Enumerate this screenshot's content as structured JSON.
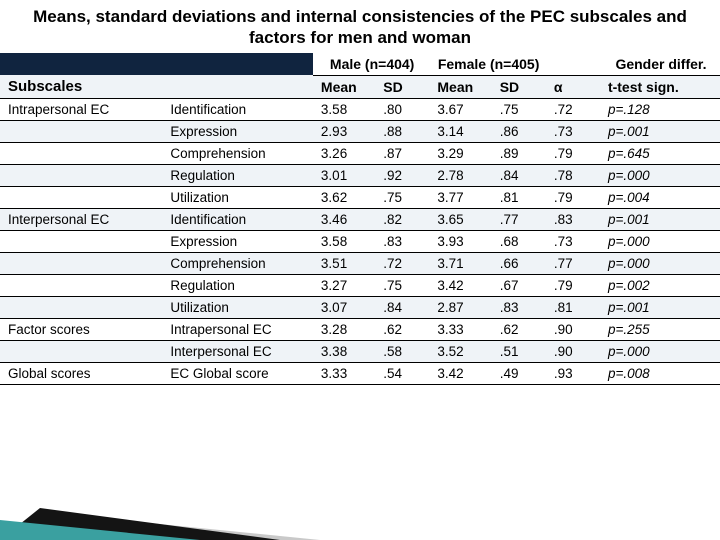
{
  "title": "Means, standard deviations and internal consistencies of the PEC subscales and factors for men and woman",
  "header": {
    "male": "Male (n=404)",
    "female": "Female (n=405)",
    "gender": "Gender differ.",
    "subscales": "Subscales",
    "mean": "Mean",
    "sd": "SD",
    "alpha": "α",
    "ttest": "t-test sign."
  },
  "groups": [
    {
      "name": "Intrapersonal EC",
      "rows": [
        {
          "factor": "Identification",
          "m_mean": "3.58",
          "m_sd": ".80",
          "f_mean": "3.67",
          "f_sd": ".75",
          "alpha": ".72",
          "t": "p=.128"
        },
        {
          "factor": "Expression",
          "m_mean": "2.93",
          "m_sd": ".88",
          "f_mean": "3.14",
          "f_sd": ".86",
          "alpha": ".73",
          "t": "p=.001"
        },
        {
          "factor": "Comprehension",
          "m_mean": "3.26",
          "m_sd": ".87",
          "f_mean": "3.29",
          "f_sd": ".89",
          "alpha": ".79",
          "t": "p=.645"
        },
        {
          "factor": "Regulation",
          "m_mean": "3.01",
          "m_sd": ".92",
          "f_mean": "2.78",
          "f_sd": ".84",
          "alpha": ".78",
          "t": "p=.000"
        },
        {
          "factor": "Utilization",
          "m_mean": "3.62",
          "m_sd": ".75",
          "f_mean": "3.77",
          "f_sd": ".81",
          "alpha": ".79",
          "t": "p=.004"
        }
      ]
    },
    {
      "name": "Interpersonal EC",
      "rows": [
        {
          "factor": "Identification",
          "m_mean": "3.46",
          "m_sd": ".82",
          "f_mean": "3.65",
          "f_sd": ".77",
          "alpha": ".83",
          "t": "p=.001"
        },
        {
          "factor": "Expression",
          "m_mean": "3.58",
          "m_sd": ".83",
          "f_mean": "3.93",
          "f_sd": ".68",
          "alpha": ".73",
          "t": "p=.000"
        },
        {
          "factor": "Comprehension",
          "m_mean": "3.51",
          "m_sd": ".72",
          "f_mean": "3.71",
          "f_sd": ".66",
          "alpha": ".77",
          "t": "p=.000"
        },
        {
          "factor": "Regulation",
          "m_mean": "3.27",
          "m_sd": ".75",
          "f_mean": "3.42",
          "f_sd": ".67",
          "alpha": ".79",
          "t": "p=.002"
        },
        {
          "factor": "Utilization",
          "m_mean": "3.07",
          "m_sd": ".84",
          "f_mean": "2.87",
          "f_sd": ".83",
          "alpha": ".81",
          "t": "p=.001"
        }
      ]
    },
    {
      "name": "Factor scores",
      "rows": [
        {
          "factor": "Intrapersonal EC",
          "m_mean": "3.28",
          "m_sd": ".62",
          "f_mean": "3.33",
          "f_sd": ".62",
          "alpha": ".90",
          "t": "p=.255"
        },
        {
          "factor": "Interpersonal EC",
          "m_mean": "3.38",
          "m_sd": ".58",
          "f_mean": "3.52",
          "f_sd": ".51",
          "alpha": ".90",
          "t": "p=.000"
        }
      ]
    },
    {
      "name": "Global scores",
      "rows": [
        {
          "factor": "EC Global score",
          "m_mean": "3.33",
          "m_sd": ".54",
          "f_mean": "3.42",
          "f_sd": ".49",
          "alpha": ".93",
          "t": "p=.008"
        }
      ]
    }
  ],
  "style": {
    "band_a": "#ffffff",
    "band_b": "#eff3f7",
    "dark": "#10243f",
    "wedge_teal": "#3aa0a0",
    "wedge_gray": "#c9c9c9"
  }
}
